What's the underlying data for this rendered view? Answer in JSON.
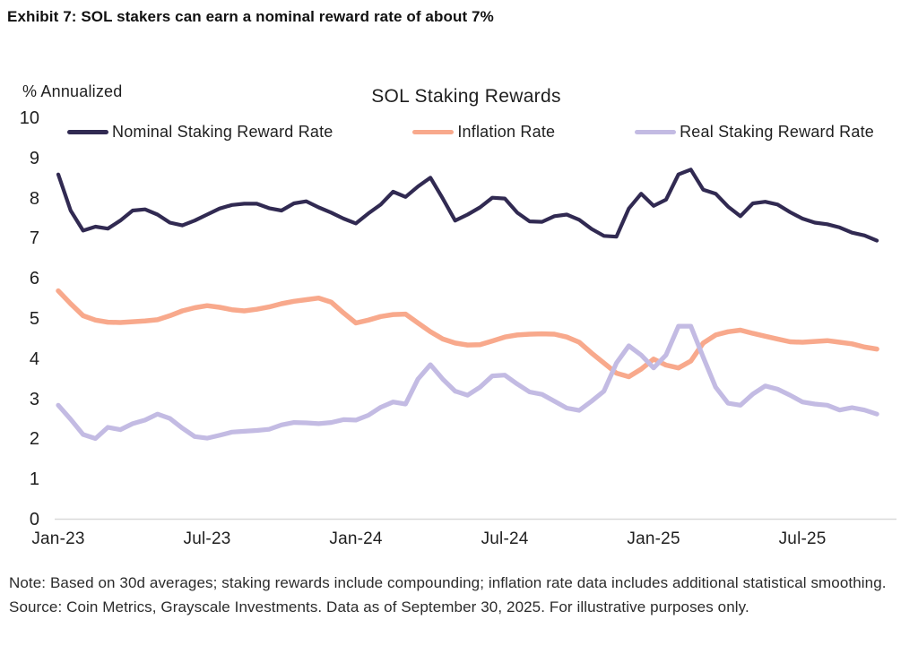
{
  "exhibit_title": "Exhibit 7: SOL stakers can earn a nominal reward rate of about 7%",
  "note": "Note: Based on 30d averages; staking rewards include compounding; inflation rate data includes additional statistical smoothing. Source: Coin Metrics, Grayscale Investments. Data as of September 30, 2025. For illustrative purposes only.",
  "chart_data": {
    "type": "line",
    "title": "SOL Staking Rewards",
    "y_axis_label": "% Annualized",
    "xlabel": "",
    "ylabel": "% Annualized",
    "ylim": [
      0,
      10
    ],
    "y_ticks": [
      0,
      1,
      2,
      3,
      4,
      5,
      6,
      7,
      8,
      9,
      10
    ],
    "grid": false,
    "legend_position": "top",
    "axis_line_color": "#d9d9d9",
    "x_range_months": [
      0,
      33
    ],
    "x_step_months": 0.5,
    "x_ticks": [
      {
        "label": "Jan-23",
        "month": 0
      },
      {
        "label": "Jul-23",
        "month": 6
      },
      {
        "label": "Jan-24",
        "month": 12
      },
      {
        "label": "Jul-24",
        "month": 18
      },
      {
        "label": "Jan-25",
        "month": 24
      },
      {
        "label": "Jul-25",
        "month": 30
      }
    ],
    "series": [
      {
        "name": "Nominal Staking Reward Rate",
        "slug": "nominal-staking-reward-rate",
        "color": "#312a52",
        "stroke_width": 4.2,
        "values": [
          8.6,
          7.7,
          7.2,
          7.3,
          7.25,
          7.45,
          7.7,
          7.73,
          7.6,
          7.4,
          7.33,
          7.45,
          7.6,
          7.75,
          7.84,
          7.87,
          7.87,
          7.76,
          7.7,
          7.88,
          7.93,
          7.78,
          7.65,
          7.5,
          7.38,
          7.63,
          7.85,
          8.17,
          8.04,
          8.3,
          8.52,
          8.0,
          7.45,
          7.6,
          7.78,
          8.02,
          8.0,
          7.65,
          7.43,
          7.42,
          7.56,
          7.6,
          7.47,
          7.24,
          7.07,
          7.05,
          7.75,
          8.12,
          7.82,
          7.97,
          8.6,
          8.72,
          8.22,
          8.12,
          7.8,
          7.56,
          7.88,
          7.92,
          7.85,
          7.66,
          7.5,
          7.4,
          7.36,
          7.28,
          7.15,
          7.08,
          6.95
        ]
      },
      {
        "name": "Inflation Rate",
        "slug": "inflation-rate",
        "color": "#f8a98c",
        "stroke_width": 5.5,
        "values": [
          5.7,
          5.38,
          5.08,
          4.97,
          4.92,
          4.91,
          4.93,
          4.95,
          4.98,
          5.08,
          5.2,
          5.28,
          5.33,
          5.29,
          5.23,
          5.2,
          5.24,
          5.3,
          5.38,
          5.44,
          5.48,
          5.52,
          5.42,
          5.15,
          4.9,
          4.97,
          5.06,
          5.11,
          5.12,
          4.9,
          4.68,
          4.5,
          4.4,
          4.35,
          4.36,
          4.45,
          4.55,
          4.6,
          4.62,
          4.63,
          4.62,
          4.55,
          4.42,
          4.15,
          3.9,
          3.65,
          3.56,
          3.75,
          4.0,
          3.85,
          3.78,
          3.95,
          4.4,
          4.6,
          4.68,
          4.72,
          4.64,
          4.57,
          4.5,
          4.43,
          4.42,
          4.44,
          4.46,
          4.42,
          4.38,
          4.3,
          4.25
        ]
      },
      {
        "name": "Real Staking Reward Rate",
        "slug": "real-staking-reward-rate",
        "color": "#c3bbe3",
        "stroke_width": 5.2,
        "values": [
          2.85,
          2.5,
          2.12,
          2.02,
          2.3,
          2.24,
          2.39,
          2.48,
          2.63,
          2.52,
          2.28,
          2.07,
          2.03,
          2.1,
          2.18,
          2.2,
          2.22,
          2.25,
          2.36,
          2.42,
          2.41,
          2.39,
          2.42,
          2.49,
          2.48,
          2.6,
          2.8,
          2.93,
          2.88,
          3.5,
          3.86,
          3.5,
          3.2,
          3.1,
          3.3,
          3.58,
          3.6,
          3.38,
          3.18,
          3.12,
          2.95,
          2.78,
          2.72,
          2.95,
          3.2,
          3.9,
          4.33,
          4.1,
          3.78,
          4.1,
          4.82,
          4.82,
          4.05,
          3.3,
          2.9,
          2.85,
          3.13,
          3.33,
          3.25,
          3.1,
          2.93,
          2.88,
          2.85,
          2.73,
          2.79,
          2.73,
          2.63
        ]
      }
    ]
  }
}
